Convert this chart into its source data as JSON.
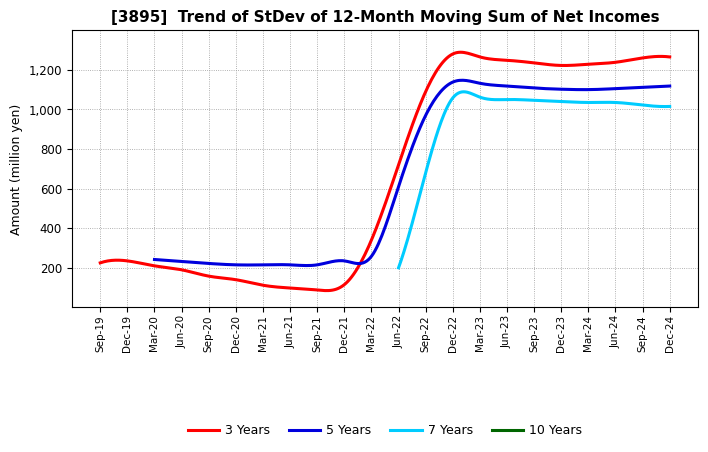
{
  "title": "[3895]  Trend of StDev of 12-Month Moving Sum of Net Incomes",
  "ylabel": "Amount (million yen)",
  "background_color": "#ffffff",
  "grid_color": "#999999",
  "x_labels": [
    "Sep-19",
    "Dec-19",
    "Mar-20",
    "Jun-20",
    "Sep-20",
    "Dec-20",
    "Mar-21",
    "Jun-21",
    "Sep-21",
    "Dec-21",
    "Mar-22",
    "Jun-22",
    "Sep-22",
    "Dec-22",
    "Mar-23",
    "Jun-23",
    "Sep-23",
    "Dec-23",
    "Mar-24",
    "Jun-24",
    "Sep-24",
    "Dec-24"
  ],
  "series": {
    "3 Years": {
      "color": "#ff0000",
      "values": [
        225,
        235,
        210,
        190,
        158,
        140,
        112,
        98,
        88,
        115,
        340,
        720,
        1090,
        1280,
        1265,
        1248,
        1235,
        1222,
        1228,
        1238,
        1260,
        1265
      ]
    },
    "5 Years": {
      "color": "#0000dd",
      "values": [
        null,
        null,
        242,
        232,
        222,
        215,
        215,
        215,
        215,
        235,
        258,
        610,
        970,
        1138,
        1132,
        1118,
        1108,
        1102,
        1100,
        1105,
        1112,
        1118
      ]
    },
    "7 Years": {
      "color": "#00ccff",
      "values": [
        null,
        null,
        null,
        null,
        null,
        null,
        null,
        null,
        null,
        null,
        null,
        200,
        680,
        1058,
        1062,
        1050,
        1046,
        1040,
        1035,
        1035,
        1022,
        1015
      ]
    },
    "10 Years": {
      "color": "#006600",
      "values": [
        null,
        null,
        null,
        null,
        null,
        null,
        null,
        null,
        null,
        null,
        null,
        null,
        null,
        null,
        null,
        null,
        null,
        null,
        null,
        null,
        null,
        null
      ]
    }
  },
  "ylim": [
    0,
    1400
  ],
  "yticks": [
    200,
    400,
    600,
    800,
    1000,
    1200
  ],
  "legend_labels": [
    "3 Years",
    "5 Years",
    "7 Years",
    "10 Years"
  ],
  "legend_colors": [
    "#ff0000",
    "#0000dd",
    "#00ccff",
    "#006600"
  ]
}
